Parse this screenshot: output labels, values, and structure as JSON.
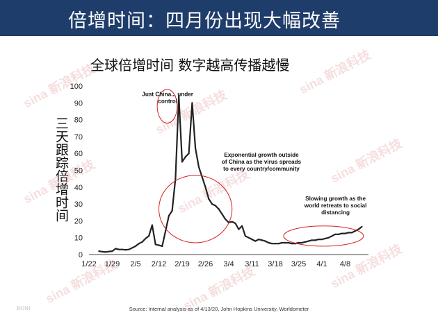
{
  "header": {
    "title": "倍增时间：四月份出现大幅改善"
  },
  "watermark_text": "sina 新浪科技",
  "footer": {
    "logo_text": "BONI",
    "source": "Source: Internal analysis as of 4/13/20, John Hopkins University, Worldometer"
  },
  "chart_data": {
    "type": "line",
    "title": "全球倍增时间  数字越高传播越慢",
    "ylabel": "三天跟踪倍增时间",
    "xlabel": "",
    "ylim": [
      0,
      100
    ],
    "yticks": [
      0,
      10,
      20,
      30,
      40,
      50,
      60,
      70,
      80,
      90,
      100
    ],
    "xticks": [
      "1/22",
      "1/29",
      "2/5",
      "2/12",
      "2/19",
      "2/26",
      "3/4",
      "3/11",
      "3/18",
      "3/25",
      "4/1",
      "4/8"
    ],
    "x_range_days": [
      0,
      84
    ],
    "line_color": "#222222",
    "grid": false,
    "series": [
      {
        "x": [
          3,
          4,
          5,
          6,
          7,
          8,
          9,
          10,
          11,
          12,
          13,
          14,
          15,
          16,
          17,
          18,
          19,
          20,
          21,
          22,
          23,
          24,
          25,
          26,
          27,
          28,
          29,
          30,
          31,
          32,
          33,
          34,
          35,
          36,
          37,
          38,
          39,
          40,
          41,
          42,
          43,
          44,
          45,
          46,
          47,
          48,
          49,
          50,
          51,
          52,
          53,
          54,
          55,
          56,
          57,
          58,
          59,
          60,
          61,
          62,
          63,
          64,
          65,
          66,
          67,
          68,
          69,
          70,
          71,
          72,
          73,
          74,
          75,
          76,
          77,
          78,
          79,
          80,
          81,
          82
        ],
        "values": [
          2,
          1.7,
          1.5,
          1.8,
          2,
          3.5,
          3,
          3,
          2.8,
          3,
          4,
          5,
          6.5,
          7.5,
          9.5,
          11,
          17.5,
          6,
          5.5,
          5,
          14,
          23,
          26,
          45,
          94,
          55,
          58,
          60,
          90,
          63,
          52,
          46,
          40,
          33,
          30,
          29,
          27,
          24,
          21,
          19,
          19.5,
          18.5,
          15,
          17,
          11,
          10,
          9,
          8,
          9,
          8.5,
          8,
          7,
          6.5,
          6.5,
          6.5,
          7,
          7,
          7,
          6.5,
          6.5,
          7,
          7,
          7.5,
          8,
          8.5,
          8.5,
          9,
          9,
          9.5,
          10,
          11,
          12,
          12,
          12.5,
          12.5,
          13,
          13,
          14,
          15,
          16.5
        ]
      }
    ],
    "annotations": [
      {
        "text": [
          "Just China... under",
          "control"
        ],
        "x": 32,
        "y": 94
      },
      {
        "text": [
          "Exponential growth outside",
          "of China as the virus spreads",
          "to every country/community"
        ],
        "x": 56,
        "y": 58
      },
      {
        "text": [
          "Slowing growth as the",
          "world retreats to social",
          "distancing"
        ],
        "x": 72,
        "y": 32
      }
    ],
    "highlight_ellipses": [
      {
        "x": 23.5,
        "y": 88,
        "rx": 3,
        "ry": 10
      },
      {
        "x": 32,
        "y": 27,
        "rx": 11,
        "ry": 20
      },
      {
        "x": 70.5,
        "y": 11,
        "rx": 12,
        "ry": 6
      }
    ],
    "highlight_color": "#d62020"
  }
}
